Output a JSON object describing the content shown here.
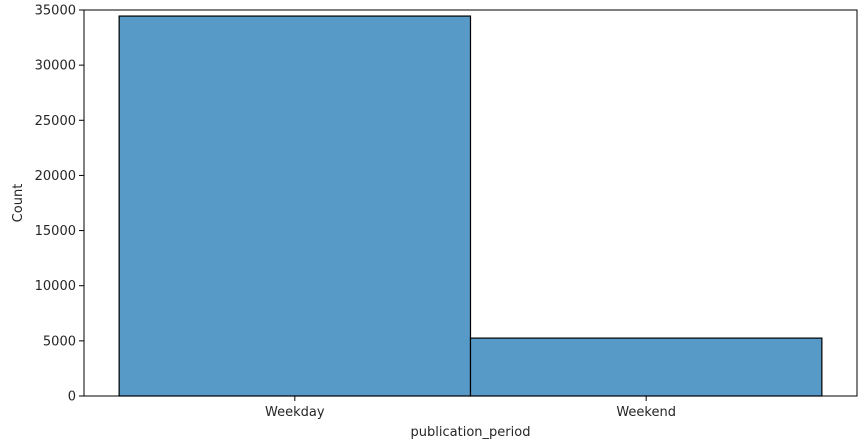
{
  "chart_data": {
    "type": "bar",
    "categories": [
      "Weekday",
      "Weekend"
    ],
    "values": [
      34450,
      5250
    ],
    "title": "",
    "xlabel": "publication_period",
    "ylabel": "Count",
    "ylim": [
      0,
      35000
    ],
    "yticks": [
      0,
      5000,
      10000,
      15000,
      20000,
      25000,
      30000,
      35000
    ],
    "grid": false,
    "bar_color": "#5799c7",
    "edge_color": "#000000"
  }
}
